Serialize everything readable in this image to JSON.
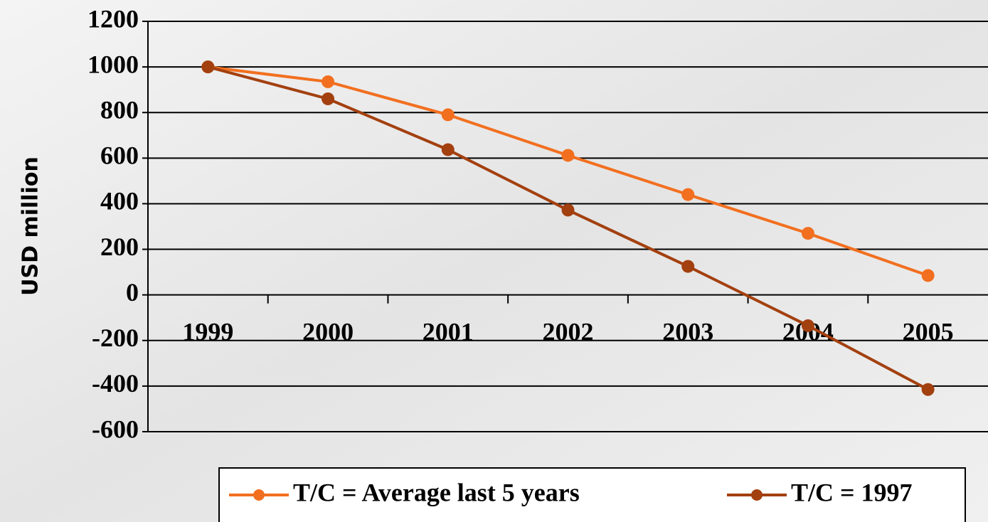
{
  "chart_data": {
    "type": "line",
    "y_label": "USD million",
    "categories": [
      "1999",
      "2000",
      "2001",
      "2002",
      "2003",
      "2004",
      "2005"
    ],
    "series": [
      {
        "name": "T/C = Average last 5 years",
        "color": "#f26f1f",
        "values": [
          1000,
          935,
          790,
          612,
          440,
          270,
          85
        ]
      },
      {
        "name": "T/C = 1997",
        "color": "#a3400f",
        "values": [
          1000,
          860,
          637,
          372,
          125,
          -135,
          -415
        ]
      }
    ],
    "ylim": [
      -600,
      1200
    ],
    "yticks": [
      -600,
      -400,
      -200,
      0,
      200,
      400,
      600,
      800,
      1000,
      1200
    ],
    "grid": true
  }
}
